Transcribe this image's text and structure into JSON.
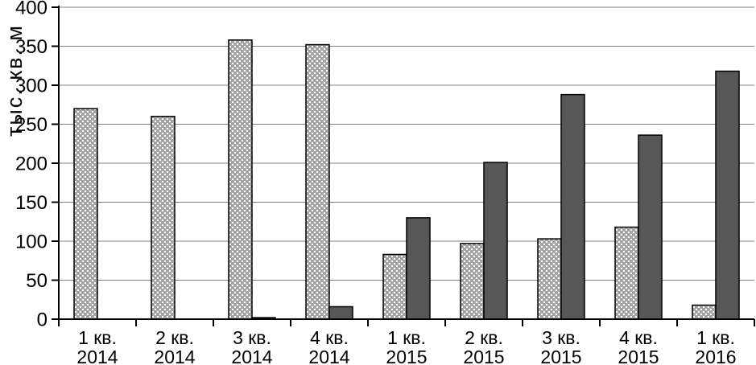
{
  "chart_data": {
    "type": "bar",
    "title": "",
    "ylabel": "тыс. кв. м",
    "xlabel": "",
    "ylim": [
      0,
      400
    ],
    "yticks": [
      0,
      50,
      100,
      150,
      200,
      250,
      300,
      350,
      400
    ],
    "grid": true,
    "legend": "none",
    "categories": [
      {
        "line1": "1 кв.",
        "line2": "2014"
      },
      {
        "line1": "2 кв.",
        "line2": "2014"
      },
      {
        "line1": "3 кв.",
        "line2": "2014"
      },
      {
        "line1": "4 кв.",
        "line2": "2014"
      },
      {
        "line1": "1 кв.",
        "line2": "2015"
      },
      {
        "line1": "2 кв.",
        "line2": "2015"
      },
      {
        "line1": "3 кв.",
        "line2": "2015"
      },
      {
        "line1": "4 кв.",
        "line2": "2015"
      },
      {
        "line1": "1 кв.",
        "line2": "2016"
      }
    ],
    "series": [
      {
        "name": "series-dotted",
        "style": "dotted-pattern",
        "pattern_base_color": "#a6a6a6",
        "pattern_dot_color": "#ffffff",
        "pattern_speck_color": "#8f8f8f",
        "values": [
          270,
          260,
          358,
          352,
          83,
          97,
          103,
          118,
          18
        ]
      },
      {
        "name": "series-dark",
        "style": "solid",
        "color": "#575757",
        "values": [
          0,
          0,
          2,
          16,
          130,
          201,
          288,
          236,
          318
        ]
      }
    ],
    "colors": {
      "axis": "#000000",
      "gridline": "#808080",
      "bar_border": "#000000",
      "text": "#000000",
      "background": "#ffffff"
    }
  }
}
